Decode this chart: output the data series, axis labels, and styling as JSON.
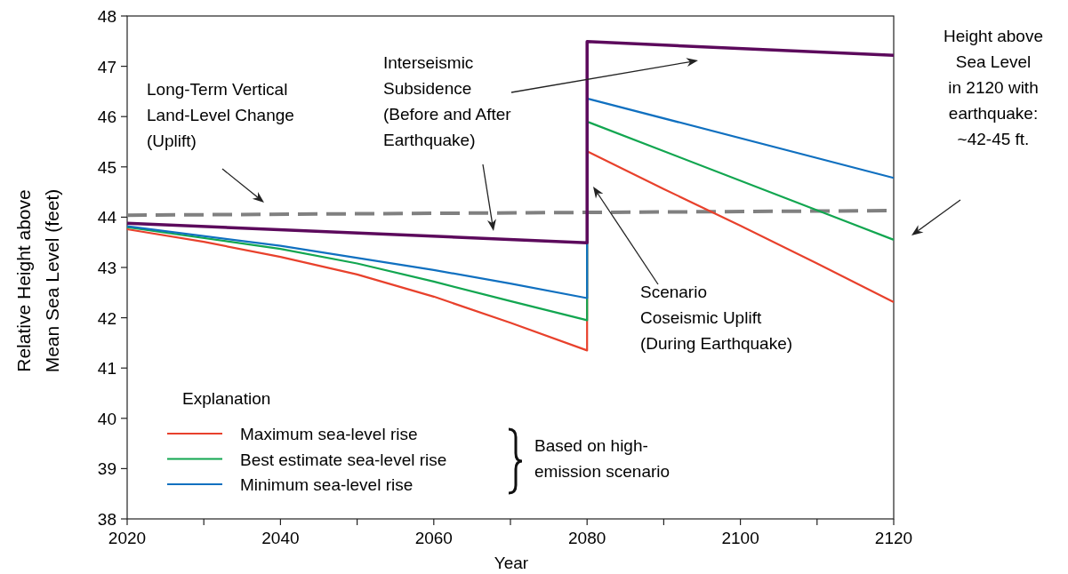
{
  "chart_data": {
    "type": "line",
    "xlabel": "Year",
    "ylabel": "Relative Height above\nMean Sea Level (feet)",
    "legend_title": "Explanation",
    "legend": "bottom left",
    "grid": false,
    "xlim": [
      2020,
      2120
    ],
    "xticks": [
      2020,
      {
        "value": 2030,
        "label": null
      },
      2040,
      {
        "value": 2050,
        "label": null
      },
      2060,
      {
        "value": 2070,
        "label": null
      },
      2080,
      {
        "value": 2090,
        "label": null
      },
      2100,
      {
        "value": 2110,
        "label": null
      },
      2120
    ],
    "ylim": [
      38,
      48
    ],
    "yticks": [
      38,
      39,
      40,
      41,
      42,
      43,
      44,
      45,
      46,
      47,
      48
    ],
    "series": [
      {
        "color": "#808080",
        "line_style": "dashed",
        "x": [
          2020,
          2120
        ],
        "values": [
          44.04,
          44.13
        ]
      },
      {
        "name": "Maximum sea-level rise",
        "color": "#e8412c",
        "x": [
          2020,
          2030,
          2040,
          2050,
          2060,
          2070,
          2080,
          2080,
          2090,
          2100,
          2110,
          2120
        ],
        "values": [
          43.76,
          43.51,
          43.21,
          42.86,
          42.42,
          41.9,
          41.35,
          45.31,
          44.56,
          43.83,
          43.08,
          42.31
        ]
      },
      {
        "name": "Best estimate sea-level rise",
        "color": "#12a650",
        "x": [
          2020,
          2040,
          2050,
          2060,
          2070,
          2080,
          2080,
          2120
        ],
        "values": [
          43.8,
          43.37,
          43.08,
          42.72,
          42.33,
          41.95,
          45.9,
          43.55
        ]
      },
      {
        "name": "Minimum sea-level rise",
        "color": "#1070c0",
        "x": [
          2020,
          2040,
          2060,
          2070,
          2080,
          2080,
          2120
        ],
        "values": [
          43.82,
          43.43,
          42.95,
          42.68,
          42.39,
          46.36,
          44.78
        ]
      },
      {
        "color": "#5c0a5c",
        "x": [
          2020,
          2080,
          2080,
          2120
        ],
        "values": [
          43.88,
          43.49,
          47.49,
          47.22
        ]
      }
    ],
    "annotations": [
      "Long-Term Vertical\nLand-Level Change\n(Uplift)",
      "Interseismic\nSubsidence\n(Before and After\nEarthquake)",
      "Scenario\nCoseismic Uplift\n(During Earthquake)",
      "Height above\nSea Level\nin 2120 with\nearthquake:\n~42-45 ft.",
      "Based on high-\nemission scenario"
    ]
  }
}
